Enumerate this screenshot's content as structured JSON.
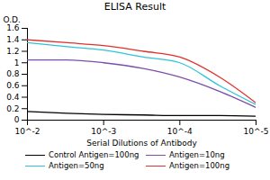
{
  "chart_data": {
    "type": "line",
    "title": "ELISA Result",
    "x_label": "Serial Dilutions of Antibody",
    "y_label": "O.D.",
    "log": "x",
    "x": [
      0.01,
      0.003,
      0.001,
      0.0003,
      0.0001,
      3e-05,
      1e-05
    ],
    "xlim": [
      0.01,
      1e-05
    ],
    "xticks": [
      {
        "value": 0.01,
        "label": "10^-2"
      },
      {
        "value": 0.001,
        "label": "10^-3"
      },
      {
        "value": 0.0001,
        "label": "10^-4"
      },
      {
        "value": 1e-05,
        "label": "10^-5"
      }
    ],
    "ylim": [
      0,
      1.6
    ],
    "yticks": [
      0,
      0.2,
      0.4,
      0.6,
      0.8,
      1,
      1.2,
      1.4,
      1.6
    ],
    "grid": false,
    "legend": "bottom",
    "series": [
      {
        "name": "Control Antigen=100ng",
        "color": "#000000",
        "values": [
          0.15,
          0.12,
          0.1,
          0.09,
          0.08,
          0.08,
          0.07
        ]
      },
      {
        "name": "Antigen=10ng",
        "color": "#7b4fa8",
        "values": [
          1.05,
          1.05,
          1.0,
          0.9,
          0.75,
          0.5,
          0.22
        ]
      },
      {
        "name": "Antigen=50ng",
        "color": "#2ec4d8",
        "values": [
          1.35,
          1.28,
          1.22,
          1.1,
          1.0,
          0.6,
          0.27
        ]
      },
      {
        "name": "Antigen=100ng",
        "color": "#e0312c",
        "values": [
          1.4,
          1.35,
          1.3,
          1.2,
          1.1,
          0.75,
          0.3
        ]
      }
    ]
  }
}
